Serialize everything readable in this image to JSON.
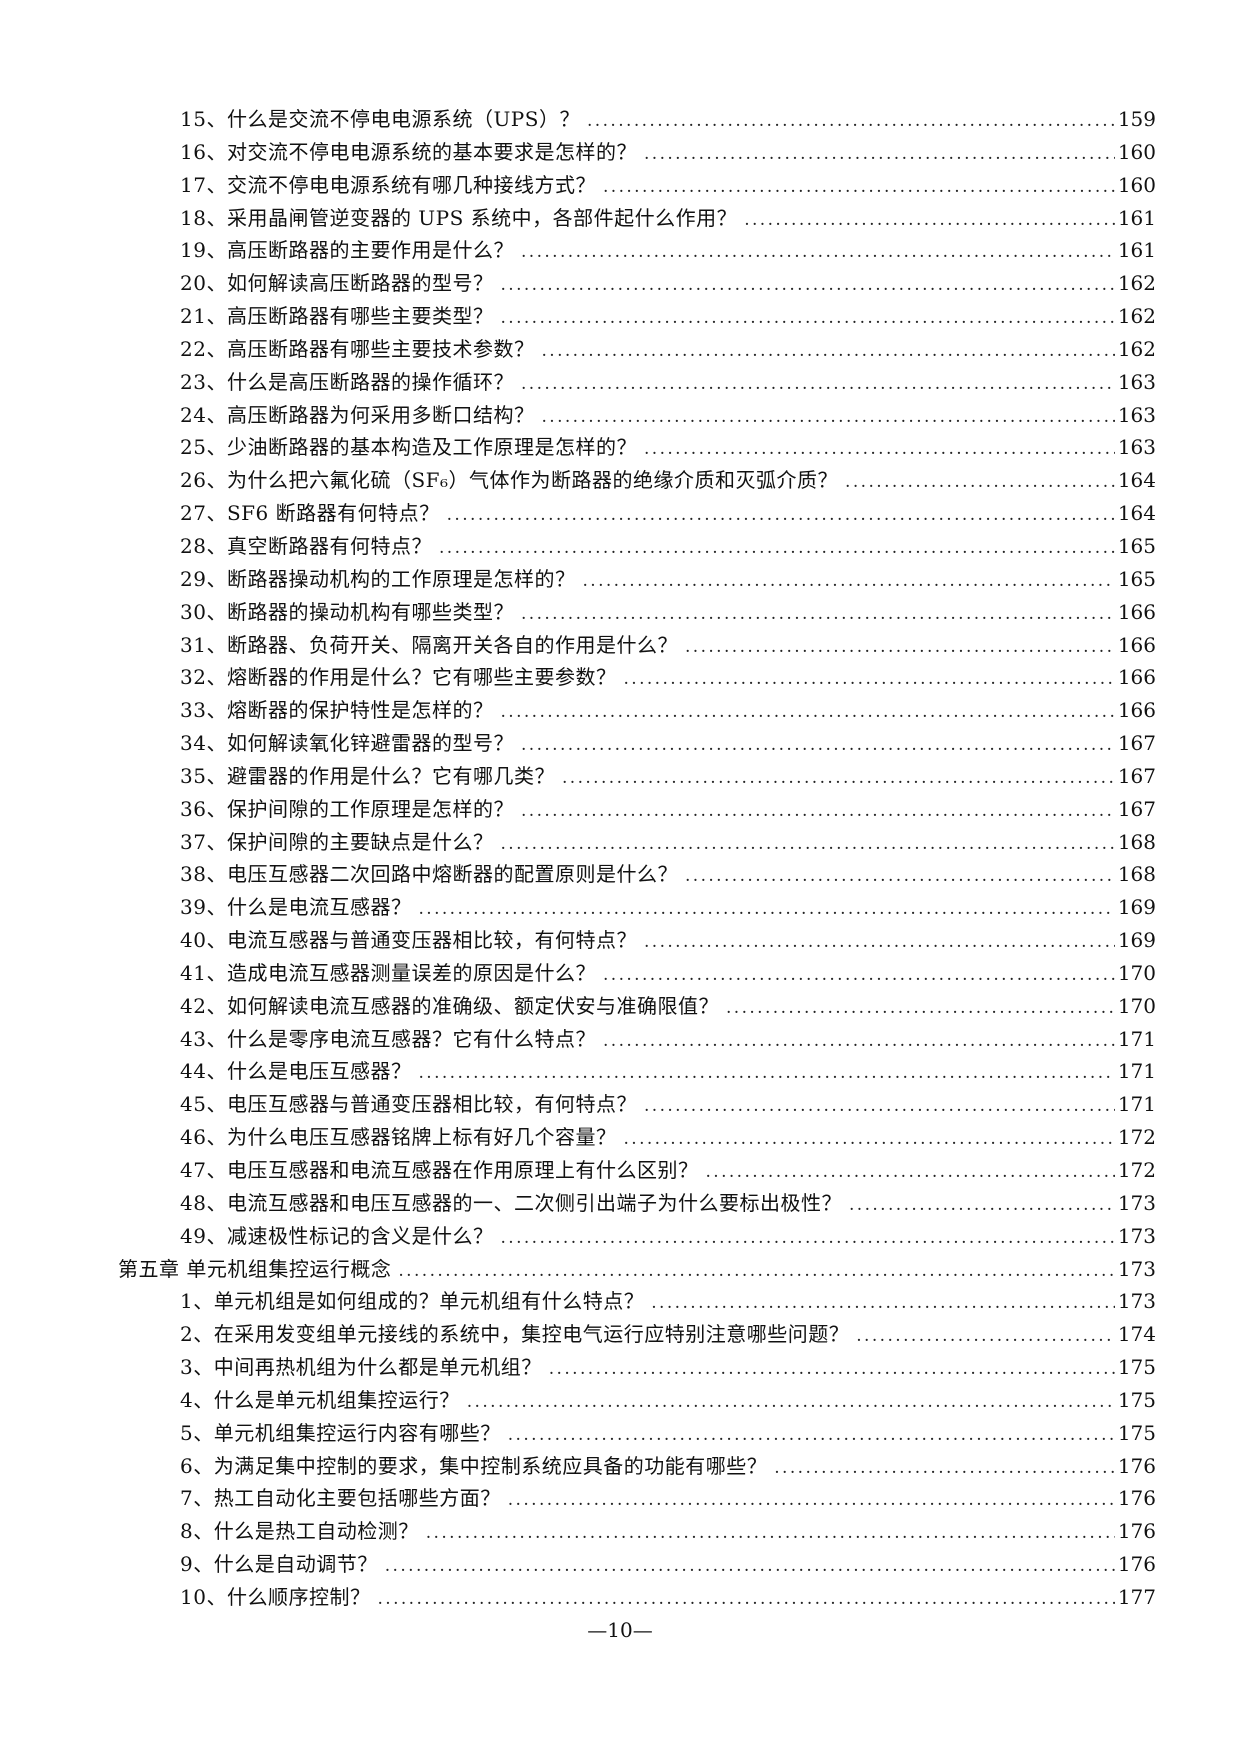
{
  "page": {
    "footer": "—10—"
  },
  "toc": {
    "entries": [
      {
        "type": "item",
        "label": "15、什么是交流不停电电源系统（UPS）？",
        "page": "159"
      },
      {
        "type": "item",
        "label": "16、对交流不停电电源系统的基本要求是怎样的？",
        "page": "160"
      },
      {
        "type": "item",
        "label": "17、交流不停电电源系统有哪几种接线方式？",
        "page": "160"
      },
      {
        "type": "item",
        "label": "18、采用晶闸管逆变器的 UPS 系统中，各部件起什么作用？",
        "page": "161"
      },
      {
        "type": "item",
        "label": "19、高压断路器的主要作用是什么？",
        "page": "161"
      },
      {
        "type": "item",
        "label": "20、如何解读高压断路器的型号？",
        "page": "162"
      },
      {
        "type": "item",
        "label": "21、高压断路器有哪些主要类型？",
        "page": "162"
      },
      {
        "type": "item",
        "label": "22、高压断路器有哪些主要技术参数？",
        "page": "162"
      },
      {
        "type": "item",
        "label": "23、什么是高压断路器的操作循环？",
        "page": "163"
      },
      {
        "type": "item",
        "label": "24、高压断路器为何采用多断口结构？",
        "page": "163"
      },
      {
        "type": "item",
        "label": "25、少油断路器的基本构造及工作原理是怎样的？",
        "page": "163"
      },
      {
        "type": "item",
        "label": "26、为什么把六氟化硫（SF₆）气体作为断路器的绝缘介质和灭弧介质？",
        "page": "164"
      },
      {
        "type": "item",
        "label": "27、SF6 断路器有何特点？",
        "page": "164"
      },
      {
        "type": "item",
        "label": "28、真空断路器有何特点？",
        "page": "165"
      },
      {
        "type": "item",
        "label": "29、断路器操动机构的工作原理是怎样的？",
        "page": "165"
      },
      {
        "type": "item",
        "label": "30、断路器的操动机构有哪些类型？",
        "page": "166"
      },
      {
        "type": "item",
        "label": "31、断路器、负荷开关、隔离开关各自的作用是什么？",
        "page": "166"
      },
      {
        "type": "item",
        "label": "32、熔断器的作用是什么？它有哪些主要参数？",
        "page": "166"
      },
      {
        "type": "item",
        "label": "33、熔断器的保护特性是怎样的？",
        "page": "166"
      },
      {
        "type": "item",
        "label": "34、如何解读氧化锌避雷器的型号？",
        "page": "167"
      },
      {
        "type": "item",
        "label": "35、避雷器的作用是什么？它有哪几类？",
        "page": "167"
      },
      {
        "type": "item",
        "label": "36、保护间隙的工作原理是怎样的？",
        "page": "167"
      },
      {
        "type": "item",
        "label": "37、保护间隙的主要缺点是什么？",
        "page": "168"
      },
      {
        "type": "item",
        "label": "38、电压互感器二次回路中熔断器的配置原则是什么？",
        "page": "168"
      },
      {
        "type": "item",
        "label": "39、什么是电流互感器？",
        "page": "169"
      },
      {
        "type": "item",
        "label": "40、电流互感器与普通变压器相比较，有何特点？",
        "page": "169"
      },
      {
        "type": "item",
        "label": "41、造成电流互感器测量误差的原因是什么？",
        "page": "170"
      },
      {
        "type": "item",
        "label": "42、如何解读电流互感器的准确级、额定伏安与准确限值？",
        "page": "170"
      },
      {
        "type": "item",
        "label": "43、什么是零序电流互感器？它有什么特点？",
        "page": "171"
      },
      {
        "type": "item",
        "label": "44、什么是电压互感器？",
        "page": "171"
      },
      {
        "type": "item",
        "label": "45、电压互感器与普通变压器相比较，有何特点？",
        "page": "171"
      },
      {
        "type": "item",
        "label": "46、为什么电压互感器铭牌上标有好几个容量？",
        "page": "172"
      },
      {
        "type": "item",
        "label": "47、电压互感器和电流互感器在作用原理上有什么区别？",
        "page": "172"
      },
      {
        "type": "item",
        "label": "48、电流互感器和电压互感器的一、二次侧引出端子为什么要标出极性？",
        "page": "173"
      },
      {
        "type": "item",
        "label": "49、减速极性标记的含义是什么？",
        "page": "173"
      },
      {
        "type": "chapter",
        "label": "第五章 单元机组集控运行概念",
        "page": "173"
      },
      {
        "type": "item",
        "label": "1、单元机组是如何组成的？单元机组有什么特点？",
        "page": "173"
      },
      {
        "type": "item",
        "label": "2、在采用发变组单元接线的系统中，集控电气运行应特别注意哪些问题？",
        "page": "174"
      },
      {
        "type": "item",
        "label": "3、中间再热机组为什么都是单元机组？",
        "page": "175"
      },
      {
        "type": "item",
        "label": "4、什么是单元机组集控运行？",
        "page": "175"
      },
      {
        "type": "item",
        "label": "5、单元机组集控运行内容有哪些？",
        "page": "175"
      },
      {
        "type": "item",
        "label": "6、为满足集中控制的要求，集中控制系统应具备的功能有哪些？",
        "page": "176"
      },
      {
        "type": "item",
        "label": "7、热工自动化主要包括哪些方面？",
        "page": "176"
      },
      {
        "type": "item",
        "label": "8、什么是热工自动检测？",
        "page": "176"
      },
      {
        "type": "item",
        "label": "9、什么是自动调节？",
        "page": "176"
      },
      {
        "type": "item",
        "label": "10、什么顺序控制？",
        "page": "177"
      }
    ]
  }
}
